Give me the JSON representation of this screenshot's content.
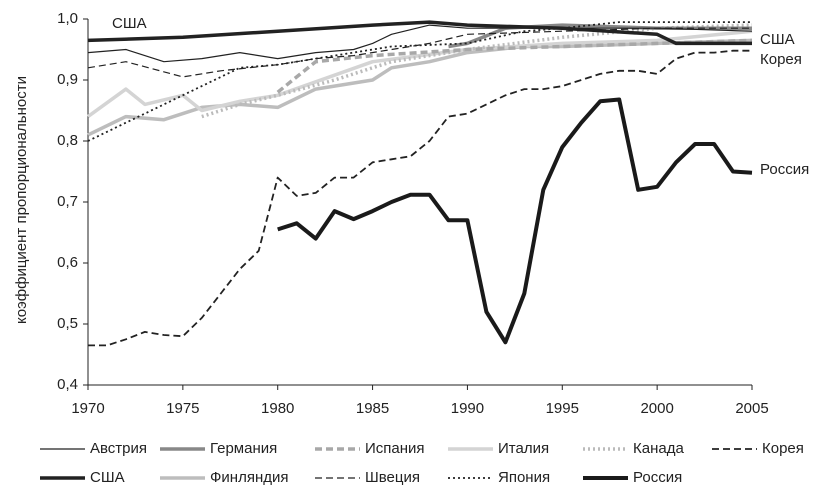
{
  "chart_data": {
    "type": "line",
    "y_label": "коэффициент пропорциональности",
    "xlim": [
      1970,
      2005
    ],
    "xticks": [
      1970,
      1975,
      1980,
      1985,
      1990,
      1995,
      2000,
      2005
    ],
    "ylim": [
      0.4,
      1.0
    ],
    "yticks": [
      {
        "value": 0.4,
        "label": "0,4"
      },
      {
        "value": 0.5,
        "label": "0,5"
      },
      {
        "value": 0.6,
        "label": "0,6"
      },
      {
        "value": 0.7,
        "label": "0,7"
      },
      {
        "value": 0.8,
        "label": "0,8"
      },
      {
        "value": 0.9,
        "label": "0,9"
      },
      {
        "value": 1.0,
        "label": "1,0"
      }
    ],
    "annotations": [
      "США",
      "США",
      "Корея",
      "Россия"
    ],
    "series": [
      {
        "name": "Австрия",
        "color": "#222222",
        "weight": "thin",
        "dash": "solid",
        "x": [
          1970,
          1972,
          1974,
          1976,
          1978,
          1980,
          1982,
          1984,
          1985,
          1986,
          1988,
          1990,
          1995,
          2000,
          2005
        ],
        "values": [
          0.945,
          0.95,
          0.93,
          0.935,
          0.945,
          0.935,
          0.945,
          0.95,
          0.96,
          0.975,
          0.99,
          0.985,
          0.985,
          0.985,
          0.98
        ]
      },
      {
        "name": "Германия",
        "color": "#888888",
        "weight": "thick",
        "dash": "solid",
        "x": [
          1989,
          1990,
          1992,
          1995,
          2000,
          2005
        ],
        "values": [
          0.955,
          0.96,
          0.985,
          0.99,
          0.985,
          0.985
        ]
      },
      {
        "name": "Испания",
        "color": "#a8a8a8",
        "weight": "thick",
        "dash": "dashed",
        "x": [
          1980,
          1981,
          1982,
          1985,
          1990,
          1995,
          2000,
          2005
        ],
        "values": [
          0.88,
          0.905,
          0.93,
          0.94,
          0.95,
          0.955,
          0.96,
          0.965
        ]
      },
      {
        "name": "Италия",
        "color": "#d4d4d4",
        "weight": "thick",
        "dash": "solid",
        "x": [
          1970,
          1972,
          1973,
          1975,
          1976,
          1978,
          1980,
          1985,
          1990,
          1995,
          2000,
          2005
        ],
        "values": [
          0.84,
          0.885,
          0.86,
          0.875,
          0.85,
          0.865,
          0.875,
          0.93,
          0.95,
          0.96,
          0.965,
          0.98
        ]
      },
      {
        "name": "Канада",
        "color": "#bbbbbb",
        "weight": "thick",
        "dash": "dotted",
        "x": [
          1976,
          1978,
          1980,
          1983,
          1986,
          1990,
          1995,
          2000,
          2005
        ],
        "values": [
          0.84,
          0.86,
          0.875,
          0.9,
          0.93,
          0.95,
          0.97,
          0.985,
          0.99
        ]
      },
      {
        "name": "Корея",
        "color": "#222222",
        "weight": "medium",
        "dash": "dashed",
        "x": [
          1970,
          1971,
          1972,
          1973,
          1974,
          1975,
          1976,
          1977,
          1978,
          1979,
          1980,
          1981,
          1982,
          1983,
          1984,
          1985,
          1986,
          1987,
          1988,
          1989,
          1990,
          1991,
          1992,
          1993,
          1994,
          1995,
          1996,
          1997,
          1998,
          1999,
          2000,
          2001,
          2002,
          2003,
          2004,
          2005
        ],
        "values": [
          0.465,
          0.465,
          0.475,
          0.487,
          0.482,
          0.48,
          0.51,
          0.55,
          0.59,
          0.62,
          0.74,
          0.71,
          0.715,
          0.74,
          0.74,
          0.765,
          0.77,
          0.775,
          0.8,
          0.84,
          0.845,
          0.86,
          0.875,
          0.885,
          0.885,
          0.89,
          0.9,
          0.91,
          0.915,
          0.915,
          0.91,
          0.935,
          0.945,
          0.945,
          0.948,
          0.948
        ]
      },
      {
        "name": "США",
        "color": "#222222",
        "weight": "thick",
        "dash": "solid",
        "x": [
          1970,
          1975,
          1980,
          1985,
          1988,
          1990,
          1995,
          2000,
          2001,
          2005
        ],
        "values": [
          0.965,
          0.97,
          0.98,
          0.99,
          0.995,
          0.99,
          0.985,
          0.975,
          0.96,
          0.96
        ]
      },
      {
        "name": "Финляндия",
        "color": "#bdbdbd",
        "weight": "thick",
        "dash": "solid",
        "x": [
          1970,
          1972,
          1974,
          1976,
          1978,
          1980,
          1982,
          1985,
          1986,
          1988,
          1990,
          1993,
          1995,
          2000,
          2005
        ],
        "values": [
          0.81,
          0.84,
          0.835,
          0.855,
          0.86,
          0.855,
          0.885,
          0.9,
          0.92,
          0.93,
          0.945,
          0.955,
          0.955,
          0.96,
          0.965
        ]
      },
      {
        "name": "Швеция",
        "color": "#222222",
        "weight": "thin",
        "dash": "dashed",
        "x": [
          1970,
          1972,
          1975,
          1977,
          1980,
          1982,
          1984,
          1986,
          1988,
          1990,
          1995,
          2000,
          2005
        ],
        "values": [
          0.92,
          0.93,
          0.905,
          0.915,
          0.925,
          0.935,
          0.94,
          0.95,
          0.96,
          0.975,
          0.98,
          0.985,
          0.985
        ]
      },
      {
        "name": "Япония",
        "color": "#222222",
        "weight": "medium",
        "dash": "dotted",
        "x": [
          1970,
          1972,
          1974,
          1976,
          1978,
          1980,
          1983,
          1986,
          1990,
          1993,
          1995,
          1998,
          2005
        ],
        "values": [
          0.8,
          0.83,
          0.86,
          0.89,
          0.92,
          0.925,
          0.94,
          0.955,
          0.96,
          0.98,
          0.985,
          0.995,
          0.995
        ]
      },
      {
        "name": "Россия",
        "color": "#1a1a1a",
        "weight": "heavy",
        "dash": "solid",
        "x": [
          1980,
          1981,
          1982,
          1983,
          1984,
          1985,
          1986,
          1987,
          1988,
          1989,
          1990,
          1991,
          1992,
          1993,
          1994,
          1995,
          1996,
          1997,
          1998,
          1999,
          2000,
          2001,
          2002,
          2003,
          2004,
          2005
        ],
        "values": [
          0.655,
          0.665,
          0.64,
          0.685,
          0.672,
          0.685,
          0.7,
          0.712,
          0.712,
          0.67,
          0.67,
          0.52,
          0.47,
          0.55,
          0.72,
          0.79,
          0.83,
          0.865,
          0.868,
          0.72,
          0.725,
          0.765,
          0.795,
          0.795,
          0.75,
          0.748
        ]
      }
    ]
  }
}
